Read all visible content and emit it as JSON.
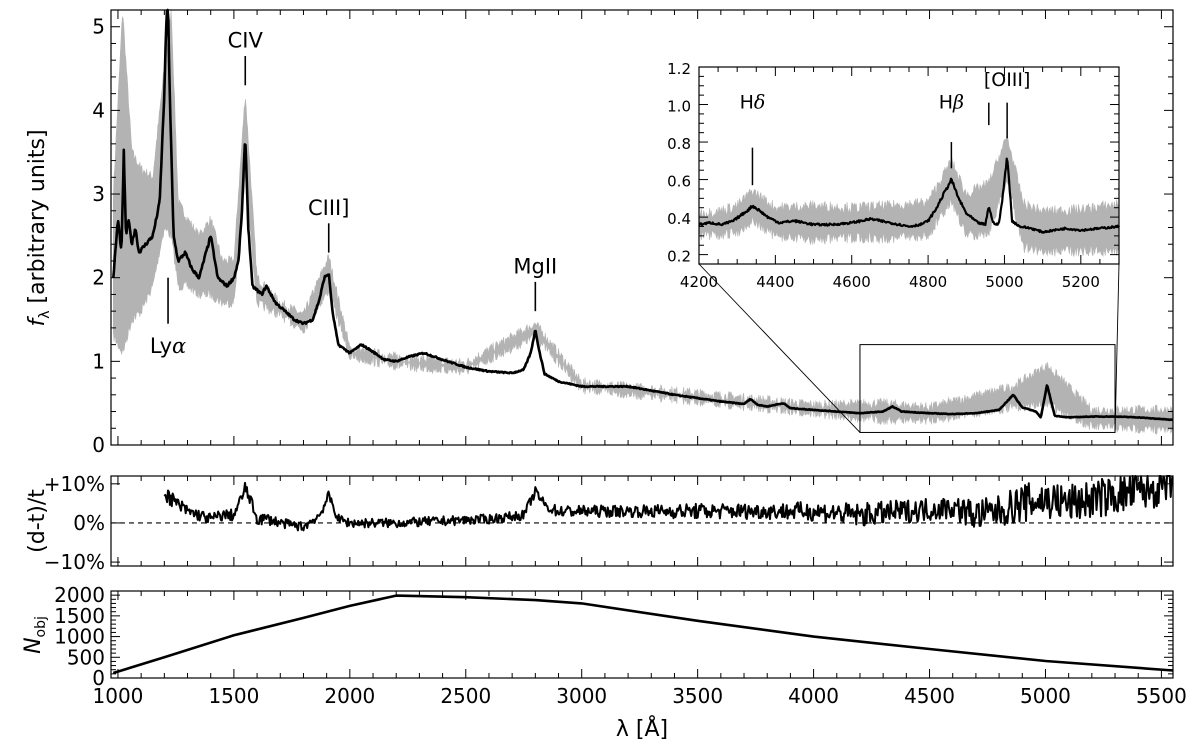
{
  "figure": {
    "x_axis_label": "λ [Å]",
    "colors": {
      "median": "#000000",
      "spread": "#b3b3b3",
      "frame": "#000000",
      "zero_line": "#000000"
    }
  },
  "chart_data": [
    {
      "panel": "composite spectrum",
      "type": "line",
      "ylabel": "f_λ [arbitrary units]",
      "ylabel_main": "f",
      "ylabel_sub": "λ",
      "ylabel_rest": " [arbitrary units]",
      "xlim": [
        970,
        5550
      ],
      "ylim": [
        0,
        5.2
      ],
      "x_ticks": [
        1000,
        1500,
        2000,
        2500,
        3000,
        3500,
        4000,
        4500,
        5000,
        5500
      ],
      "y_ticks": [
        0,
        1,
        2,
        3,
        4,
        5
      ],
      "y_tick_labels": [
        "0",
        "1",
        "2",
        "3",
        "4",
        "5"
      ],
      "series": [
        {
          "role": "median",
          "x": [
            980,
            1000,
            1015,
            1025,
            1035,
            1045,
            1060,
            1075,
            1090,
            1120,
            1150,
            1180,
            1200,
            1210,
            1216,
            1225,
            1240,
            1260,
            1290,
            1320,
            1350,
            1380,
            1400,
            1430,
            1470,
            1500,
            1520,
            1535,
            1549,
            1562,
            1580,
            1620,
            1640,
            1680,
            1720,
            1760,
            1800,
            1840,
            1870,
            1890,
            1909,
            1925,
            1950,
            2000,
            2050,
            2080,
            2150,
            2200,
            2250,
            2320,
            2400,
            2500,
            2600,
            2700,
            2750,
            2780,
            2800,
            2815,
            2840,
            2900,
            3000,
            3100,
            3200,
            3300,
            3400,
            3500,
            3600,
            3700,
            3727,
            3760,
            3800,
            3869,
            3900,
            4000,
            4100,
            4200,
            4300,
            4340,
            4380,
            4500,
            4600,
            4700,
            4800,
            4861,
            4900,
            4959,
            4980,
            5007,
            5040,
            5100,
            5200,
            5300,
            5400,
            5550
          ],
          "y": [
            2.0,
            2.7,
            2.3,
            3.5,
            2.5,
            2.7,
            2.4,
            2.6,
            2.3,
            2.4,
            2.5,
            2.9,
            4.2,
            5.2,
            5.2,
            4.0,
            2.5,
            2.2,
            2.3,
            2.1,
            2.0,
            2.3,
            2.5,
            2.0,
            1.9,
            2.0,
            2.2,
            2.8,
            3.7,
            2.6,
            1.9,
            1.8,
            1.9,
            1.7,
            1.6,
            1.5,
            1.45,
            1.5,
            1.75,
            2.0,
            2.05,
            1.6,
            1.2,
            1.1,
            1.2,
            1.15,
            1.02,
            1.0,
            1.05,
            1.1,
            1.02,
            0.93,
            0.88,
            0.86,
            0.9,
            1.1,
            1.38,
            1.15,
            0.85,
            0.76,
            0.7,
            0.7,
            0.7,
            0.65,
            0.6,
            0.56,
            0.52,
            0.49,
            0.55,
            0.48,
            0.46,
            0.5,
            0.44,
            0.42,
            0.4,
            0.38,
            0.4,
            0.46,
            0.4,
            0.38,
            0.37,
            0.38,
            0.42,
            0.6,
            0.45,
            0.4,
            0.33,
            0.72,
            0.35,
            0.33,
            0.34,
            0.34,
            0.33,
            0.3
          ]
        },
        {
          "role": "spread",
          "x": [
            980,
            1020,
            1060,
            1100,
            1150,
            1200,
            1230,
            1260,
            1300,
            1350,
            1400,
            1450,
            1500,
            1549,
            1600,
            1700,
            1800,
            1909,
            2000,
            2200,
            2500,
            2800,
            3000,
            3500,
            4000,
            4300,
            4500,
            4861,
            5007,
            5200,
            5550
          ],
          "y_upper": [
            3.0,
            5.2,
            3.5,
            3.3,
            3.2,
            4.5,
            5.2,
            2.9,
            2.7,
            2.5,
            2.7,
            2.2,
            2.2,
            4.2,
            2.0,
            1.7,
            1.55,
            2.25,
            1.15,
            1.05,
            0.98,
            1.45,
            0.75,
            0.62,
            0.48,
            0.5,
            0.45,
            0.7,
            0.95,
            0.42,
            0.42
          ],
          "y_lower": [
            1.3,
            1.1,
            1.5,
            1.6,
            1.9,
            2.6,
            2.5,
            1.9,
            1.9,
            1.8,
            1.8,
            1.7,
            1.7,
            3.2,
            1.7,
            1.55,
            1.38,
            1.85,
            1.05,
            0.95,
            0.88,
            1.3,
            0.67,
            0.52,
            0.38,
            0.3,
            0.3,
            0.45,
            0.5,
            0.22,
            0.18
          ]
        }
      ],
      "annotations": [
        {
          "label": "Lyα",
          "label_main": "Ly",
          "label_greek": "α",
          "x": 1216,
          "tick_from": 1.45,
          "tick_to": 2.0,
          "label_y": 1.1,
          "position": "below"
        },
        {
          "label": "CIV",
          "x": 1549,
          "tick_from": 4.3,
          "tick_to": 4.65,
          "label_y": 4.75,
          "position": "above"
        },
        {
          "label": "CIII]",
          "x": 1909,
          "tick_from": 2.3,
          "tick_to": 2.65,
          "label_y": 2.75,
          "position": "above"
        },
        {
          "label": "MgII",
          "x": 2800,
          "tick_from": 1.6,
          "tick_to": 1.95,
          "label_y": 2.05,
          "position": "above"
        }
      ],
      "zoom_box": {
        "x": [
          4200,
          5300
        ],
        "y": [
          0.15,
          1.2
        ]
      }
    },
    {
      "panel": "inset",
      "type": "line",
      "xlim": [
        4200,
        5300
      ],
      "ylim": [
        0.15,
        1.2
      ],
      "x_ticks": [
        4200,
        4400,
        4600,
        4800,
        5000,
        5200
      ],
      "y_ticks": [
        0.2,
        0.4,
        0.6,
        0.8,
        1.0,
        1.2
      ],
      "y_tick_labels": [
        "0.2",
        "0.4",
        "0.6",
        "0.8",
        "1.0",
        "1.2"
      ],
      "series": [
        {
          "role": "median",
          "x": [
            4200,
            4230,
            4260,
            4290,
            4310,
            4330,
            4340,
            4355,
            4380,
            4410,
            4450,
            4500,
            4550,
            4600,
            4650,
            4700,
            4750,
            4780,
            4800,
            4820,
            4840,
            4861,
            4880,
            4900,
            4930,
            4950,
            4959,
            4970,
            4985,
            4995,
            5007,
            5020,
            5040,
            5070,
            5100,
            5130,
            5160,
            5200,
            5250,
            5300
          ],
          "y": [
            0.36,
            0.37,
            0.36,
            0.38,
            0.41,
            0.44,
            0.46,
            0.44,
            0.4,
            0.37,
            0.38,
            0.36,
            0.36,
            0.37,
            0.39,
            0.37,
            0.35,
            0.36,
            0.38,
            0.44,
            0.52,
            0.6,
            0.5,
            0.42,
            0.37,
            0.36,
            0.46,
            0.37,
            0.36,
            0.5,
            0.73,
            0.38,
            0.35,
            0.34,
            0.32,
            0.33,
            0.34,
            0.33,
            0.34,
            0.35
          ]
        },
        {
          "role": "spread",
          "x": [
            4200,
            4250,
            4300,
            4340,
            4400,
            4500,
            4600,
            4700,
            4800,
            4861,
            4900,
            4959,
            5007,
            5050,
            5100,
            5200,
            5300
          ],
          "y_upper": [
            0.42,
            0.43,
            0.46,
            0.54,
            0.45,
            0.46,
            0.45,
            0.46,
            0.48,
            0.7,
            0.52,
            0.58,
            0.83,
            0.47,
            0.43,
            0.44,
            0.47
          ],
          "y_lower": [
            0.3,
            0.3,
            0.32,
            0.38,
            0.3,
            0.28,
            0.29,
            0.29,
            0.3,
            0.49,
            0.3,
            0.32,
            0.6,
            0.24,
            0.22,
            0.22,
            0.22
          ]
        }
      ],
      "annotations": [
        {
          "label": "Hδ",
          "label_main": "H",
          "label_greek": "δ",
          "x": 4340,
          "tick_from": 0.57,
          "tick_to": 0.77,
          "label_y": 0.98
        },
        {
          "label": "Hβ",
          "label_main": "H",
          "label_greek": "β",
          "x": 4861,
          "tick_from": 0.66,
          "tick_to": 0.8,
          "label_y": 0.98
        },
        {
          "label": "",
          "x": 4959,
          "tick_from": 0.89,
          "tick_to": 1.01
        },
        {
          "label": "[OIII]",
          "x": 5007,
          "tick_from": 0.82,
          "tick_to": 1.01,
          "label_y": 1.1
        }
      ]
    },
    {
      "panel": "residual",
      "type": "line",
      "ylabel": "(d-t)/t",
      "xlim": [
        970,
        5550
      ],
      "ylim": [
        -11,
        12
      ],
      "y_ticks": [
        -10,
        0,
        10
      ],
      "y_tick_labels": [
        "−10%",
        "0%",
        "+10%"
      ],
      "reference_line": {
        "y": 0,
        "style": "dashed"
      },
      "series": [
        {
          "role": "residual",
          "x": [
            1200,
            1250,
            1300,
            1350,
            1400,
            1450,
            1500,
            1530,
            1549,
            1570,
            1600,
            1650,
            1700,
            1800,
            1870,
            1909,
            1950,
            2000,
            2200,
            2400,
            2600,
            2750,
            2800,
            2850,
            2900,
            3000,
            3200,
            3500,
            3800,
            4000,
            4200,
            4400,
            4600,
            4700,
            4800,
            4900,
            5000,
            5100,
            5200,
            5300,
            5400,
            5500,
            5550
          ],
          "y": [
            8,
            5,
            3,
            2,
            1,
            2,
            2,
            6,
            9,
            6,
            1,
            1,
            0,
            -1,
            2,
            7,
            1,
            0,
            0,
            0.5,
            1,
            2,
            8,
            4,
            3,
            3,
            3,
            3,
            3,
            3,
            2,
            3,
            4,
            2,
            3,
            5,
            6,
            5,
            6,
            7,
            8,
            9,
            10
          ],
          "noise_amplitude": [
            2,
            2,
            1.5,
            1.5,
            1.5,
            1.5,
            1.5,
            1.5,
            1.5,
            1.5,
            1.5,
            1.5,
            1.2,
            1.2,
            1.2,
            1.2,
            1.2,
            1.2,
            1.2,
            1.2,
            1.2,
            1.2,
            1.2,
            1.2,
            1.5,
            1.5,
            1.5,
            2,
            2,
            2.5,
            3,
            3,
            3,
            4,
            4,
            5,
            5,
            5,
            5,
            5,
            5,
            5,
            5
          ]
        }
      ]
    },
    {
      "panel": "number of objects",
      "type": "line",
      "ylabel": "N_obj",
      "ylabel_main": "N",
      "ylabel_sub": "obj",
      "xlim": [
        970,
        5550
      ],
      "ylim": [
        0,
        2100
      ],
      "y_ticks": [
        0,
        500,
        1000,
        1500,
        2000
      ],
      "y_tick_labels": [
        "0",
        "500",
        "1000",
        "1500",
        "2000"
      ],
      "series": [
        {
          "role": "count",
          "x": [
            980,
            1200,
            1500,
            1800,
            2000,
            2200,
            2500,
            2800,
            3000,
            3500,
            4000,
            4500,
            5000,
            5550
          ],
          "y": [
            120,
            500,
            1030,
            1450,
            1740,
            1990,
            1950,
            1880,
            1800,
            1380,
            1000,
            700,
            410,
            180
          ]
        }
      ]
    }
  ]
}
